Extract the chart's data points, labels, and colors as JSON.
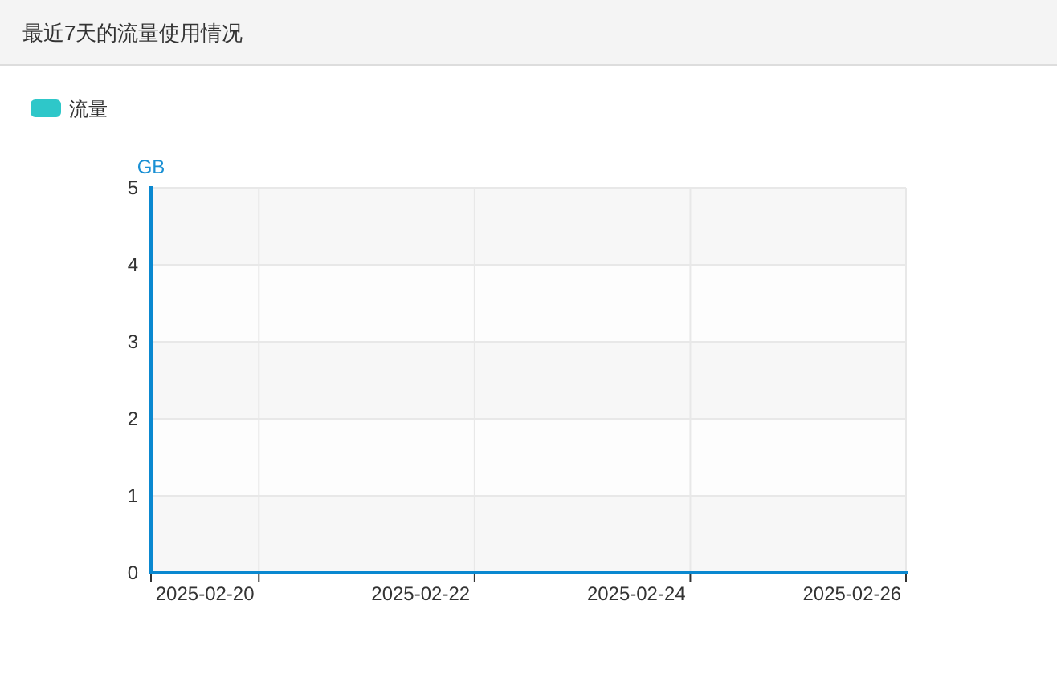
{
  "chart_data": {
    "type": "bar",
    "title": "最近7天的流量使用情况",
    "ylabel": "GB",
    "categories": [
      "2025-02-20",
      null,
      "2025-02-22",
      null,
      "2025-02-24",
      null,
      "2025-02-26"
    ],
    "series": [
      {
        "name": "流量",
        "color": "#2ec7c9",
        "values": [
          null,
          null,
          null,
          null,
          null,
          null,
          null
        ]
      }
    ],
    "ylim": [
      0,
      5
    ],
    "yticks": [
      0,
      1,
      2,
      3,
      4,
      5
    ],
    "grid": true,
    "legend": "top left"
  }
}
